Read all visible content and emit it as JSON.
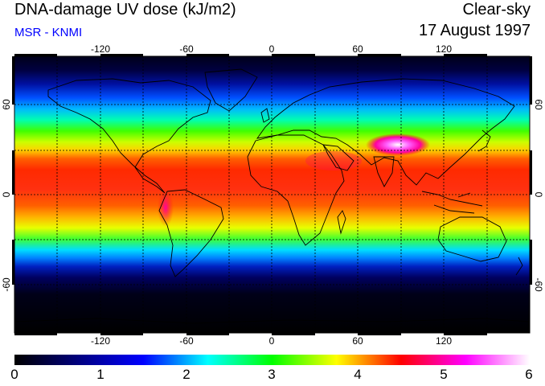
{
  "header": {
    "title": "DNA-damage UV dose (kJ/m2)",
    "subtitle": "MSR - KNMI",
    "sky": "Clear-sky",
    "date": "17 August 1997"
  },
  "axes": {
    "lon_ticks": [
      "-120",
      "-60",
      "0",
      "60",
      "120"
    ],
    "lat_ticks": [
      "60",
      "0",
      "-60"
    ]
  },
  "colorbar": {
    "labels": [
      "0",
      "1",
      "2",
      "3",
      "4",
      "5",
      "6"
    ],
    "stops": [
      "#000000",
      "#000080",
      "#0000ff",
      "#00ffff",
      "#00ff00",
      "#ffff00",
      "#ff0000",
      "#ff00ff",
      "#ffffff"
    ]
  }
}
